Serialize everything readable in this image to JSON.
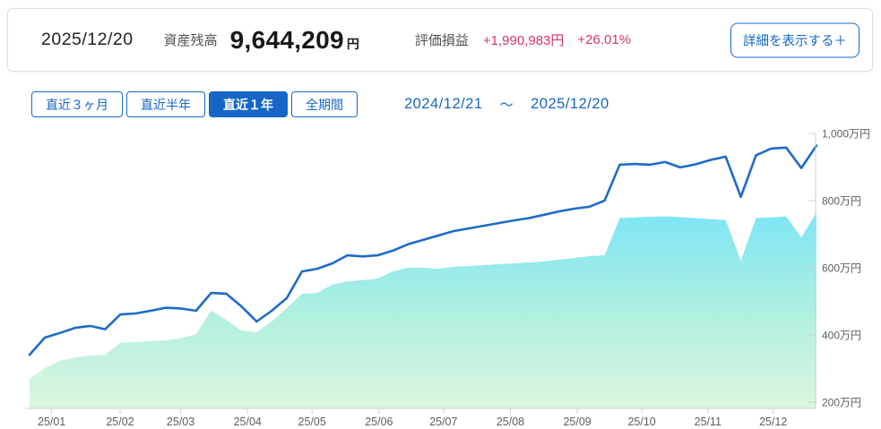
{
  "header": {
    "as_of_date": "2025/12/20",
    "asset_label": "資産残高",
    "asset_value": "9,644,209",
    "asset_unit": "円",
    "pl_label": "評価損益",
    "pl_amount": "+1,990,983円",
    "pl_percent": "+26.01%",
    "detail_button": "詳細を表示する＋"
  },
  "controls": {
    "tabs": [
      {
        "label": "直近３ヶ月",
        "active": false
      },
      {
        "label": "直近半年",
        "active": false
      },
      {
        "label": "直近１年",
        "active": true
      },
      {
        "label": "全期間",
        "active": false
      }
    ],
    "range_start": "2024/12/21",
    "range_separator": "～",
    "range_end": "2025/12/20"
  },
  "colors": {
    "ui_blue": "#1667c8",
    "pl_pink": "#d6336e",
    "line_blue": "#1e6bc8",
    "axis_gray": "#cdd2d8",
    "tick_text": "#5a5f63",
    "area_gradient_top": "#7de5f6",
    "area_gradient_mid": "#aeefe0",
    "area_gradient_bottom": "#dcf6de"
  },
  "chart_data": {
    "type": "area",
    "title": "",
    "unit": "万円",
    "x_range": [
      "2024/12/21",
      "2025/12/20"
    ],
    "x_interval": "weekly",
    "ylim": [
      200,
      1000
    ],
    "grid": false,
    "legend": "none",
    "y_ticks": [
      {
        "value": 1000,
        "label": "1,000万円"
      },
      {
        "value": 800,
        "label": "800万円"
      },
      {
        "value": 600,
        "label": "600万円"
      },
      {
        "value": 400,
        "label": "400万円"
      },
      {
        "value": 200,
        "label": "200万円"
      }
    ],
    "x_ticks": [
      {
        "label": "25/01",
        "f": 0.028
      },
      {
        "label": "25/02",
        "f": 0.115
      },
      {
        "label": "25/03",
        "f": 0.192
      },
      {
        "label": "25/04",
        "f": 0.277
      },
      {
        "label": "25/05",
        "f": 0.359
      },
      {
        "label": "25/06",
        "f": 0.444
      },
      {
        "label": "25/07",
        "f": 0.526
      },
      {
        "label": "25/08",
        "f": 0.611
      },
      {
        "label": "25/09",
        "f": 0.696
      },
      {
        "label": "25/10",
        "f": 0.778
      },
      {
        "label": "25/11",
        "f": 0.862
      },
      {
        "label": "25/12",
        "f": 0.945
      }
    ],
    "series": [
      {
        "id": "asset-balance-line",
        "type": "line",
        "color": "#1e6bc8",
        "values": [
          341,
          392,
          406,
          421,
          427,
          417,
          461,
          464,
          472,
          481,
          479,
          472,
          525,
          523,
          485,
          440,
          472,
          510,
          589,
          597,
          613,
          637,
          634,
          637,
          651,
          670,
          683,
          696,
          709,
          717,
          725,
          733,
          741,
          748,
          758,
          768,
          776,
          782,
          800,
          907,
          909,
          907,
          915,
          899,
          908,
          921,
          931,
          811,
          935,
          955,
          958,
          897,
          964
        ]
      },
      {
        "id": "principal-area",
        "type": "area",
        "gradient": [
          "#7de5f6",
          "#aeefe0",
          "#dcf6de"
        ],
        "values": [
          269,
          301,
          323,
          333,
          339,
          341,
          377,
          379,
          381,
          384,
          390,
          402,
          472,
          445,
          413,
          408,
          440,
          480,
          523,
          525,
          550,
          560,
          563,
          568,
          589,
          600,
          600,
          597,
          603,
          605,
          608,
          611,
          613,
          616,
          619,
          624,
          629,
          635,
          637,
          748,
          750,
          752,
          753,
          751,
          748,
          745,
          742,
          621,
          748,
          750,
          753,
          690,
          765
        ]
      }
    ]
  }
}
